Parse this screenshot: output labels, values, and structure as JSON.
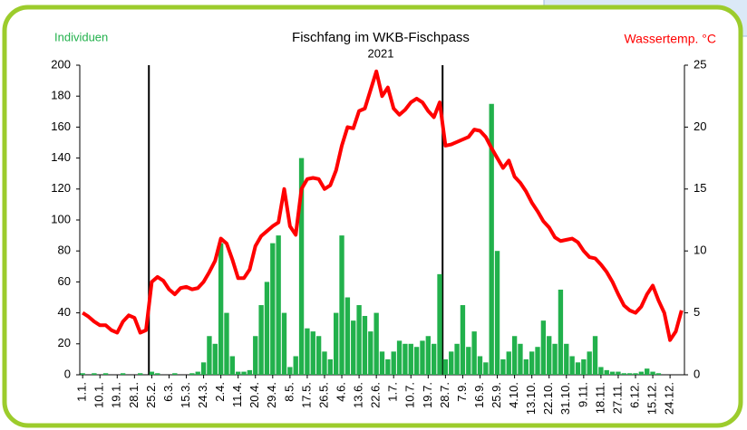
{
  "chart_data": {
    "type": "bar_line",
    "title": "Fischfang im WKB-Fischpass",
    "subtitle": "2021",
    "ylabel": "Individuen",
    "y2label": "Wassertemp. °C",
    "categories": [
      "1.1.",
      null,
      null,
      "10.1.",
      null,
      null,
      "19.1.",
      null,
      null,
      "28.1.",
      null,
      null,
      "25.2.",
      null,
      null,
      "6.3.",
      null,
      null,
      "15.3.",
      null,
      null,
      "24.3.",
      null,
      null,
      "2.4.",
      null,
      null,
      "11.4.",
      null,
      null,
      "20.4.",
      null,
      null,
      "29.4.",
      null,
      null,
      "8.5.",
      null,
      null,
      "17.5.",
      null,
      null,
      "26.5.",
      null,
      null,
      "4.6.",
      null,
      null,
      "13.6.",
      null,
      null,
      "22.6.",
      null,
      null,
      "1.7.",
      null,
      null,
      "10.7.",
      null,
      null,
      "19.7.",
      null,
      null,
      "28.7.",
      null,
      null,
      "7.9.",
      null,
      null,
      "16.9.",
      null,
      null,
      "25.9.",
      null,
      null,
      "4.10.",
      null,
      null,
      "13.10.",
      null,
      null,
      "22.10.",
      null,
      null,
      "31.10.",
      null,
      null,
      "9.11.",
      null,
      null,
      "18.11.",
      null,
      null,
      "27.11.",
      null,
      null,
      "6.12.",
      null,
      null,
      "15.12.",
      null,
      null,
      "24.12.",
      null,
      null
    ],
    "series": [
      {
        "name": "Individuen",
        "color": "#22b14c",
        "axis": "y",
        "values": [
          1,
          0,
          1,
          0,
          1,
          0,
          0,
          1,
          0,
          0,
          1,
          0,
          2,
          1,
          0,
          0,
          1,
          0,
          0,
          1,
          2,
          8,
          25,
          20,
          85,
          40,
          12,
          2,
          2,
          3,
          25,
          45,
          60,
          85,
          90,
          40,
          5,
          12,
          140,
          30,
          28,
          25,
          15,
          10,
          40,
          90,
          50,
          35,
          45,
          38,
          28,
          40,
          15,
          10,
          15,
          22,
          20,
          20,
          18,
          22,
          25,
          20,
          65,
          10,
          15,
          20,
          45,
          18,
          28,
          12,
          8,
          175,
          80,
          10,
          15,
          25,
          20,
          10,
          15,
          18,
          35,
          25,
          20,
          55,
          20,
          12,
          8,
          10,
          15,
          25,
          5,
          3,
          2,
          2,
          1,
          1,
          1,
          2,
          4,
          2,
          1,
          0,
          0,
          0,
          0
        ]
      },
      {
        "name": "Wassertemp. °C",
        "color": "#ff0000",
        "axis": "y2",
        "values": [
          5.0,
          4.7,
          4.3,
          4.0,
          4.0,
          3.6,
          3.4,
          4.3,
          4.8,
          4.6,
          3.4,
          3.6,
          7.5,
          7.9,
          7.6,
          6.9,
          6.5,
          7.0,
          7.1,
          6.9,
          7.0,
          7.5,
          8.3,
          9.2,
          11.0,
          10.6,
          9.3,
          7.8,
          7.8,
          8.5,
          10.4,
          11.2,
          11.6,
          12.0,
          12.3,
          15.0,
          12.0,
          11.3,
          15.0,
          15.8,
          15.9,
          15.8,
          15.0,
          15.3,
          16.5,
          18.5,
          20.0,
          19.9,
          21.3,
          21.5,
          23.0,
          24.5,
          22.5,
          23.2,
          21.5,
          21.0,
          21.4,
          22.0,
          22.3,
          22.0,
          21.3,
          20.8,
          22.0,
          18.5,
          18.6,
          18.8,
          19.0,
          19.2,
          19.8,
          19.7,
          19.2,
          18.3,
          17.5,
          16.7,
          17.3,
          16.0,
          15.5,
          14.8,
          13.9,
          13.2,
          12.4,
          11.9,
          11.1,
          10.8,
          10.9,
          11.0,
          10.7,
          10.0,
          9.5,
          9.4,
          8.9,
          8.3,
          7.5,
          6.5,
          5.6,
          5.2,
          5.0,
          5.5,
          6.5,
          7.2,
          6.0,
          5.0,
          2.8,
          3.5,
          5.2
        ]
      }
    ],
    "ylim": [
      0,
      200
    ],
    "yticks": [
      0,
      20,
      40,
      60,
      80,
      100,
      120,
      140,
      160,
      180,
      200
    ],
    "y2lim": [
      0,
      25
    ],
    "y2ticks": [
      0,
      5,
      10,
      15,
      20,
      25
    ]
  }
}
